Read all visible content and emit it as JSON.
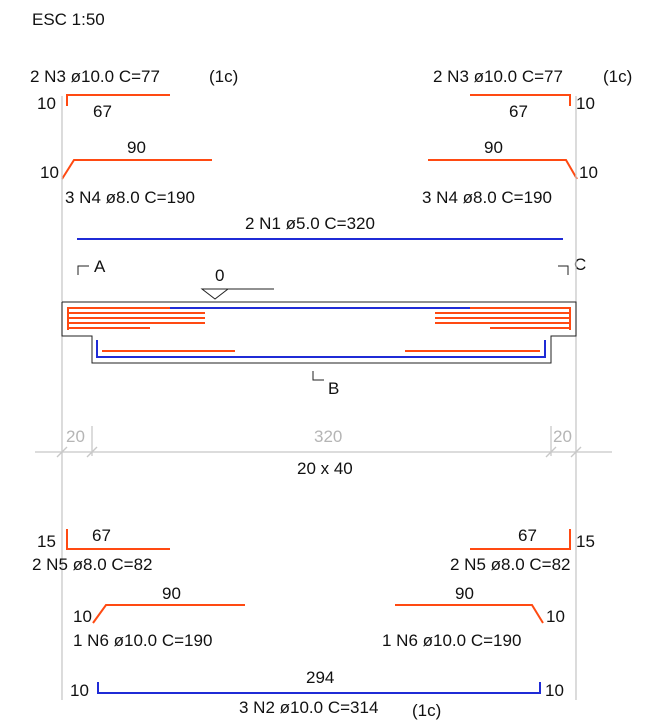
{
  "scale": "ESC 1:50",
  "bars": {
    "n3_left": {
      "label": "2 N3 ø10.0  C=77",
      "suffix": "(1c)",
      "hook": "10",
      "length": "67"
    },
    "n3_right": {
      "label": "2 N3 ø10.0  C=77",
      "suffix": "(1c)",
      "hook": "10",
      "length": "67"
    },
    "n4_left": {
      "label": "3 N4 ø8.0  C=190",
      "hook": "10",
      "length": "90"
    },
    "n4_right": {
      "label": "3 N4 ø8.0  C=190",
      "hook": "10",
      "length": "90"
    },
    "n1": {
      "label": "2 N1 ø5.0  C=320"
    },
    "n5_left": {
      "label": "2 N5 ø8.0  C=82",
      "hook": "15",
      "length": "67"
    },
    "n5_right": {
      "label": "2 N5 ø8.0  C=82",
      "hook": "15",
      "length": "67"
    },
    "n6_left": {
      "label": "1 N6 ø10.0  C=190",
      "hook": "10",
      "length": "90"
    },
    "n6_right": {
      "label": "1 N6 ø10.0  C=190",
      "hook": "10",
      "length": "90"
    },
    "n2": {
      "label": "3 N2 ø10.0  C=314",
      "suffix": "(1c)",
      "hook_left": "10",
      "hook_right": "10",
      "length": "294"
    }
  },
  "section": {
    "mark_a": "A",
    "mark_b": "B",
    "mark_c": "C",
    "level": "0",
    "support_left": "20",
    "span": "320",
    "support_right": "20",
    "dimensions": "20 x 40"
  },
  "colors": {
    "longitudinal_top_bottom": "#1f2bd6",
    "negative_positive_bars": "#ff4a12",
    "dimension_lines": "#c8c8c8",
    "outline": "#222222"
  }
}
